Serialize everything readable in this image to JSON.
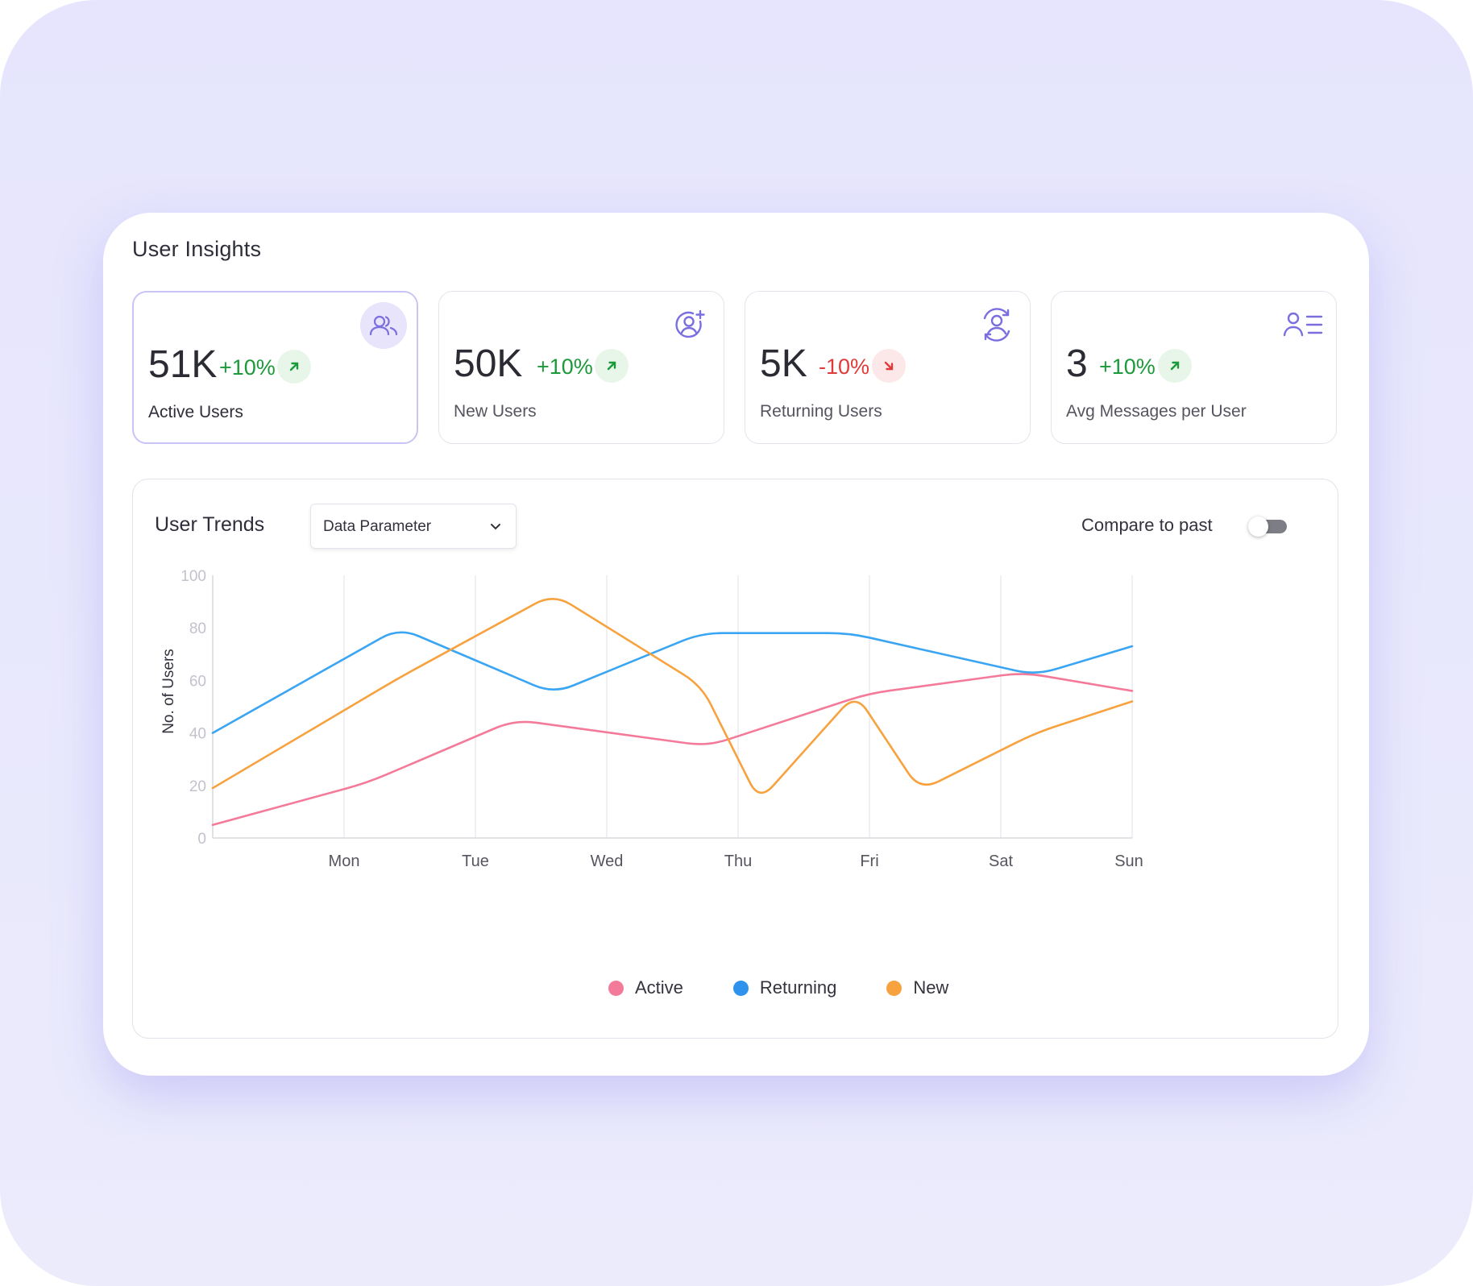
{
  "panel": {
    "title": "User Insights"
  },
  "cards": [
    {
      "value": "51K",
      "delta": "+10%",
      "direction": "up",
      "label": "Active Users",
      "icon": "users-icon"
    },
    {
      "value": "50K",
      "delta": "+10%",
      "direction": "up",
      "label": "New Users",
      "icon": "user-plus-icon"
    },
    {
      "value": "5K",
      "delta": "-10%",
      "direction": "down",
      "label": "Returning Users",
      "icon": "user-refresh-icon"
    },
    {
      "value": "3",
      "delta": "+10%",
      "direction": "up",
      "label": "Avg Messages per User",
      "icon": "user-list-icon"
    }
  ],
  "trends": {
    "title": "User Trends",
    "dropdown": {
      "selected": "Data Parameter"
    },
    "compare": {
      "label": "Compare to past",
      "enabled": false
    }
  },
  "colors": {
    "accent": "#7b6fe0",
    "active": "#f47a9a",
    "returning": "#3aa5f2",
    "new": "#f7a23e",
    "up": "#1b9a3a",
    "down": "#e03b3b"
  },
  "chart_data": {
    "type": "line",
    "ylabel": "No. of Users",
    "xlabel": "",
    "ylim": [
      0,
      100
    ],
    "yticks": [
      0,
      20,
      40,
      60,
      80,
      100
    ],
    "categories": [
      "Mon",
      "Tue",
      "Wed",
      "Thu",
      "Fri",
      "Sat",
      "Sun"
    ],
    "grid": "vertical",
    "legend": "bottom-center",
    "series": [
      {
        "name": "Active",
        "color": "#f47a9a",
        "x": [
          0,
          1.2,
          2.35,
          3.85,
          5.1,
          6.3,
          7.15
        ],
        "y": [
          5,
          21,
          45,
          35,
          55,
          63,
          56
        ]
      },
      {
        "name": "Returning",
        "color": "#3aa5f2",
        "x": [
          0,
          1.45,
          2.65,
          3.8,
          4.95,
          6.4,
          7.15
        ],
        "y": [
          40,
          80,
          55,
          78,
          78,
          62,
          73
        ]
      },
      {
        "name": "New",
        "color": "#f7a23e",
        "x": [
          0,
          1.45,
          2.65,
          3.8,
          4.25,
          5.0,
          5.5,
          6.4,
          7.15
        ],
        "y": [
          19,
          61,
          93,
          58,
          14,
          55,
          18,
          40,
          52
        ]
      }
    ]
  }
}
